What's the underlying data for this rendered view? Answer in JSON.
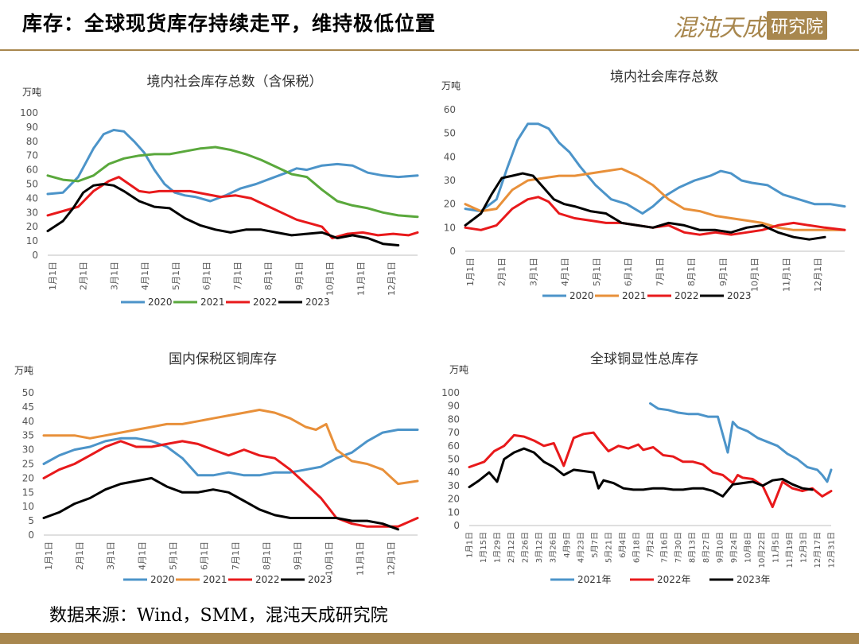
{
  "header": {
    "title": "库存：全球现货库存持续走平，维持极低位置"
  },
  "logo": {
    "text": "混沌天成",
    "seal": "研究院"
  },
  "footer": {
    "source": "数据来源：Wind，SMM，混沌天成研究院"
  },
  "colors": {
    "accent": "#a8874e",
    "c2020": "#4c94c9",
    "c2021": "#5aa83c",
    "c2021b": "#e8903a",
    "c2022": "#e8191b",
    "c2023": "#000000"
  },
  "chart_data": [
    {
      "type": "line",
      "title": "境内社会库存总数（含保税）",
      "unit": "万吨",
      "ylim": [
        0,
        100
      ],
      "yticks": [
        0,
        10,
        20,
        30,
        40,
        50,
        60,
        70,
        80,
        90,
        100
      ],
      "x_ticks": [
        "1月1日",
        "2月1日",
        "3月1日",
        "4月1日",
        "5月1日",
        "6月1日",
        "7月1日",
        "8月1日",
        "9月1日",
        "10月1日",
        "11月1日",
        "12月1日"
      ],
      "series": [
        {
          "name": "2020",
          "color": "#4c94c9",
          "x": [
            0,
            15,
            30,
            45,
            55,
            65,
            75,
            85,
            95,
            105,
            115,
            125,
            135,
            145,
            160,
            175,
            190,
            205,
            220,
            235,
            245,
            255,
            270,
            285,
            300,
            315,
            330,
            345,
            364
          ],
          "y": [
            43,
            44,
            55,
            75,
            85,
            88,
            87,
            80,
            72,
            60,
            50,
            44,
            42,
            41,
            38,
            42,
            47,
            50,
            54,
            58,
            61,
            60,
            63,
            64,
            63,
            58,
            56,
            55,
            56
          ]
        },
        {
          "name": "2021",
          "color": "#5aa83c",
          "x": [
            0,
            15,
            30,
            45,
            60,
            75,
            90,
            105,
            120,
            135,
            150,
            165,
            180,
            195,
            210,
            225,
            240,
            255,
            270,
            285,
            300,
            315,
            330,
            345,
            364
          ],
          "y": [
            56,
            53,
            52,
            56,
            64,
            68,
            70,
            71,
            71,
            73,
            75,
            76,
            74,
            71,
            67,
            62,
            57,
            55,
            46,
            38,
            35,
            33,
            30,
            28,
            27
          ]
        },
        {
          "name": "2022",
          "color": "#e8191b",
          "x": [
            0,
            15,
            30,
            45,
            60,
            70,
            80,
            90,
            100,
            110,
            125,
            140,
            155,
            170,
            185,
            200,
            215,
            230,
            245,
            260,
            270,
            280,
            295,
            310,
            325,
            340,
            355,
            364
          ],
          "y": [
            28,
            31,
            34,
            45,
            52,
            55,
            50,
            45,
            44,
            45,
            45,
            45,
            43,
            41,
            42,
            40,
            35,
            30,
            25,
            22,
            20,
            12,
            15,
            16,
            14,
            15,
            14,
            16
          ]
        },
        {
          "name": "2023",
          "color": "#000000",
          "x": [
            0,
            15,
            25,
            35,
            45,
            55,
            65,
            75,
            90,
            105,
            120,
            135,
            150,
            165,
            180,
            195,
            210,
            225,
            240,
            255,
            270,
            285,
            300,
            315,
            330,
            345
          ],
          "y": [
            17,
            24,
            33,
            44,
            49,
            50,
            49,
            45,
            38,
            34,
            33,
            26,
            21,
            18,
            16,
            18,
            18,
            16,
            14,
            15,
            16,
            12,
            14,
            12,
            8,
            7
          ]
        }
      ]
    },
    {
      "type": "line",
      "title": "境内社会库存总数",
      "unit": "万吨",
      "ylim": [
        0,
        60
      ],
      "yticks": [
        0,
        10,
        20,
        30,
        40,
        50,
        60
      ],
      "x_ticks": [
        "1月1日",
        "2月1日",
        "3月1日",
        "4月1日",
        "5月1日",
        "6月1日",
        "7月1日",
        "8月1日",
        "9月1日",
        "10月1日",
        "11月1日",
        "12月1日"
      ],
      "series": [
        {
          "name": "2020",
          "color": "#4c94c9",
          "x": [
            0,
            15,
            30,
            40,
            50,
            60,
            70,
            80,
            90,
            100,
            110,
            125,
            140,
            155,
            170,
            180,
            190,
            205,
            220,
            235,
            245,
            255,
            265,
            275,
            290,
            305,
            320,
            335,
            350,
            364
          ],
          "y": [
            18,
            17,
            22,
            35,
            47,
            54,
            54,
            52,
            46,
            42,
            36,
            28,
            22,
            20,
            16,
            19,
            23,
            27,
            30,
            32,
            34,
            33,
            30,
            29,
            28,
            24,
            22,
            20,
            20,
            19
          ]
        },
        {
          "name": "2021",
          "color": "#e8903a",
          "x": [
            0,
            15,
            30,
            45,
            60,
            75,
            90,
            105,
            120,
            135,
            150,
            165,
            180,
            195,
            210,
            225,
            240,
            255,
            270,
            285,
            300,
            315,
            330,
            345,
            364
          ],
          "y": [
            20,
            17,
            18,
            26,
            30,
            31,
            32,
            32,
            33,
            34,
            35,
            32,
            28,
            22,
            18,
            17,
            15,
            14,
            13,
            12,
            10,
            9,
            9,
            9,
            9
          ]
        },
        {
          "name": "2022",
          "color": "#e8191b",
          "x": [
            0,
            15,
            30,
            45,
            60,
            70,
            80,
            90,
            105,
            120,
            135,
            150,
            165,
            180,
            195,
            210,
            225,
            240,
            255,
            270,
            285,
            300,
            315,
            330,
            345,
            364
          ],
          "y": [
            10,
            9,
            11,
            18,
            22,
            23,
            21,
            16,
            14,
            13,
            12,
            12,
            11,
            10,
            11,
            8,
            7,
            8,
            7,
            8,
            9,
            11,
            12,
            11,
            10,
            9
          ]
        },
        {
          "name": "2023",
          "color": "#000000",
          "x": [
            0,
            15,
            25,
            35,
            45,
            55,
            65,
            75,
            85,
            95,
            105,
            120,
            135,
            150,
            165,
            180,
            195,
            210,
            225,
            240,
            255,
            270,
            285,
            300,
            315,
            330,
            345
          ],
          "y": [
            11,
            16,
            24,
            31,
            32,
            33,
            32,
            27,
            22,
            20,
            19,
            17,
            16,
            12,
            11,
            10,
            12,
            11,
            9,
            9,
            8,
            10,
            11,
            8,
            6,
            5,
            6
          ]
        }
      ]
    },
    {
      "type": "line",
      "title": "国内保税区铜库存",
      "unit": "万吨",
      "ylim": [
        0,
        50
      ],
      "yticks": [
        0,
        5,
        10,
        15,
        20,
        25,
        30,
        35,
        40,
        45,
        50
      ],
      "x_ticks": [
        "1月1日",
        "2月1日",
        "3月1日",
        "4月1日",
        "5月1日",
        "6月1日",
        "7月1日",
        "8月1日",
        "9月1日",
        "10月1日",
        "11月1日",
        "12月1日"
      ],
      "series": [
        {
          "name": "2020",
          "color": "#4c94c9",
          "x": [
            0,
            15,
            30,
            45,
            60,
            75,
            90,
            105,
            120,
            135,
            150,
            165,
            180,
            195,
            210,
            225,
            240,
            255,
            270,
            285,
            300,
            315,
            330,
            345,
            364
          ],
          "y": [
            25,
            28,
            30,
            31,
            33,
            34,
            34,
            33,
            31,
            27,
            21,
            21,
            22,
            21,
            21,
            22,
            22,
            23,
            24,
            27,
            29,
            33,
            36,
            37,
            37
          ]
        },
        {
          "name": "2021",
          "color": "#e8903a",
          "x": [
            0,
            15,
            30,
            45,
            60,
            75,
            90,
            105,
            120,
            135,
            150,
            165,
            180,
            195,
            210,
            225,
            240,
            255,
            265,
            275,
            285,
            300,
            315,
            330,
            345,
            364
          ],
          "y": [
            35,
            35,
            35,
            34,
            35,
            36,
            37,
            38,
            39,
            39,
            40,
            41,
            42,
            43,
            44,
            43,
            41,
            38,
            37,
            39,
            30,
            26,
            25,
            23,
            18,
            19
          ]
        },
        {
          "name": "2022",
          "color": "#e8191b",
          "x": [
            0,
            15,
            30,
            45,
            60,
            75,
            90,
            105,
            120,
            135,
            150,
            165,
            180,
            195,
            210,
            225,
            240,
            255,
            270,
            285,
            300,
            315,
            330,
            345,
            364
          ],
          "y": [
            20,
            23,
            25,
            28,
            31,
            33,
            31,
            31,
            32,
            33,
            32,
            30,
            28,
            30,
            28,
            27,
            23,
            18,
            13,
            6,
            4,
            3,
            3,
            3,
            6
          ]
        },
        {
          "name": "2023",
          "color": "#000000",
          "x": [
            0,
            15,
            30,
            45,
            60,
            75,
            90,
            105,
            120,
            135,
            150,
            165,
            180,
            195,
            210,
            225,
            240,
            255,
            270,
            285,
            300,
            315,
            330,
            345
          ],
          "y": [
            6,
            8,
            11,
            13,
            16,
            18,
            19,
            20,
            17,
            15,
            15,
            16,
            15,
            12,
            9,
            7,
            6,
            6,
            6,
            6,
            5,
            5,
            4,
            2
          ]
        }
      ]
    },
    {
      "type": "line",
      "title": "全球铜显性总库存",
      "unit": "万吨",
      "ylim": [
        0,
        100
      ],
      "yticks": [
        0,
        10,
        20,
        30,
        40,
        50,
        60,
        70,
        80,
        90,
        100
      ],
      "x_ticks": [
        "1月1日",
        "1月15日",
        "1月29日",
        "2月12日",
        "2月26日",
        "3月12日",
        "3月26日",
        "4月9日",
        "4月23日",
        "5月7日",
        "5月21日",
        "6月4日",
        "6月18日",
        "7月2日",
        "7月16日",
        "7月30日",
        "8月13日",
        "8月27日",
        "9月10日",
        "9月24日",
        "10月8日",
        "10月22日",
        "11月5日",
        "11月19日",
        "12月3日",
        "12月17日",
        "12月31日"
      ],
      "series": [
        {
          "name": "2021年",
          "color": "#4c94c9",
          "x": [
            182,
            190,
            200,
            210,
            220,
            230,
            240,
            250,
            260,
            265,
            270,
            280,
            290,
            300,
            310,
            320,
            330,
            340,
            350,
            355,
            360,
            364
          ],
          "y": [
            92,
            88,
            87,
            85,
            84,
            84,
            82,
            82,
            55,
            78,
            74,
            71,
            66,
            63,
            60,
            54,
            50,
            44,
            42,
            38,
            33,
            42
          ]
        },
        {
          "name": "2022年",
          "color": "#e8191b",
          "x": [
            0,
            15,
            25,
            35,
            45,
            55,
            65,
            75,
            85,
            95,
            105,
            115,
            125,
            130,
            140,
            150,
            160,
            170,
            175,
            185,
            195,
            205,
            215,
            225,
            235,
            245,
            255,
            265,
            270,
            275,
            285,
            295,
            305,
            315,
            325,
            335,
            345,
            355,
            364
          ],
          "y": [
            44,
            48,
            56,
            60,
            68,
            67,
            64,
            60,
            62,
            45,
            66,
            69,
            70,
            65,
            56,
            60,
            58,
            61,
            57,
            59,
            53,
            52,
            48,
            48,
            46,
            40,
            38,
            32,
            38,
            36,
            35,
            30,
            14,
            33,
            28,
            26,
            28,
            22,
            26
          ]
        },
        {
          "name": "2023年",
          "color": "#000000",
          "x": [
            0,
            10,
            20,
            28,
            35,
            45,
            55,
            65,
            75,
            85,
            95,
            105,
            115,
            125,
            130,
            135,
            145,
            155,
            165,
            175,
            185,
            195,
            205,
            215,
            225,
            235,
            245,
            255,
            265,
            275,
            285,
            295,
            305,
            315,
            325,
            335,
            345
          ],
          "y": [
            29,
            34,
            40,
            33,
            50,
            55,
            58,
            55,
            48,
            44,
            38,
            42,
            41,
            40,
            28,
            34,
            32,
            28,
            27,
            27,
            28,
            28,
            27,
            27,
            28,
            28,
            26,
            22,
            31,
            32,
            33,
            30,
            34,
            35,
            31,
            28,
            27
          ]
        }
      ]
    }
  ]
}
